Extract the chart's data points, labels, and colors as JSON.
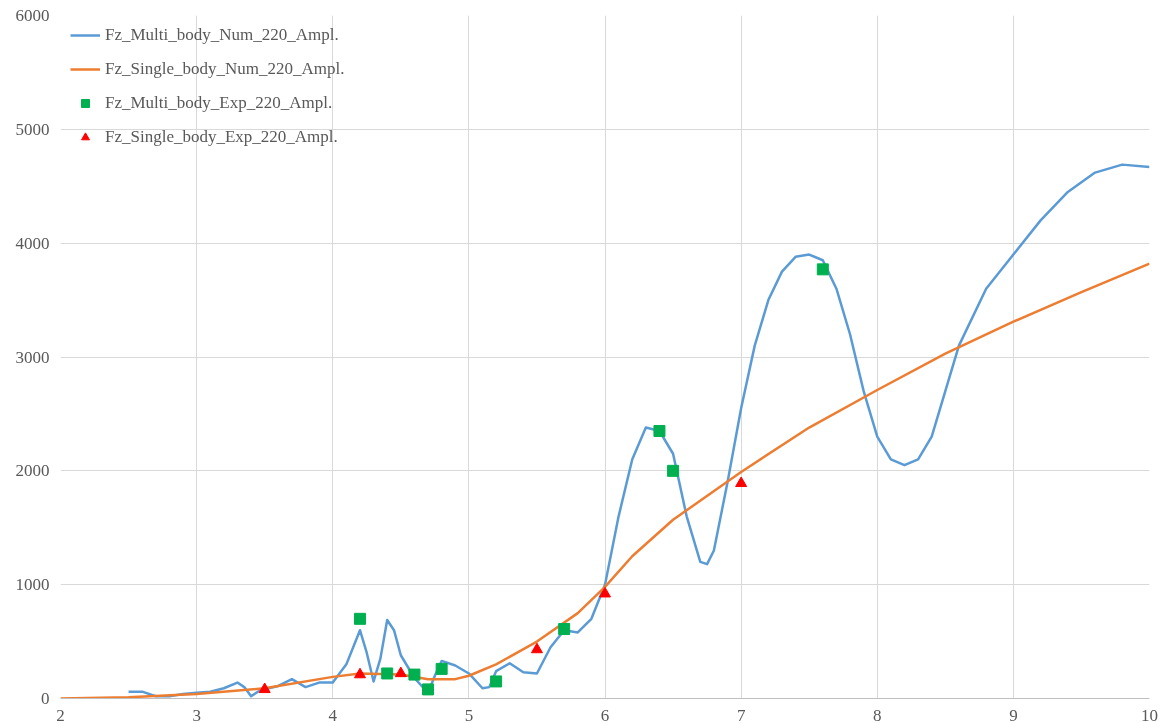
{
  "chart_data": {
    "type": "line",
    "xlim": [
      2,
      10
    ],
    "ylim": [
      0,
      6000
    ],
    "xticks": [
      2,
      3,
      4,
      5,
      6,
      7,
      8,
      9,
      10
    ],
    "yticks": [
      0,
      1000,
      2000,
      3000,
      4000,
      5000,
      6000
    ],
    "grid": true,
    "legend": "top left",
    "series": [
      {
        "name": "Fz_Multi_body_Num_220_Ampl.",
        "color": "#5b9bd5",
        "x": [
          2.5,
          2.6,
          2.7,
          2.8,
          2.9,
          3.0,
          3.1,
          3.2,
          3.3,
          3.35,
          3.4,
          3.45,
          3.5,
          3.6,
          3.7,
          3.8,
          3.9,
          4.0,
          4.1,
          4.2,
          4.25,
          4.3,
          4.35,
          4.4,
          4.45,
          4.5,
          4.6,
          4.7,
          4.75,
          4.8,
          4.9,
          5.0,
          5.1,
          5.15,
          5.2,
          5.3,
          5.4,
          5.5,
          5.6,
          5.7,
          5.8,
          5.9,
          6.0,
          6.1,
          6.2,
          6.3,
          6.4,
          6.5,
          6.6,
          6.7,
          6.75,
          6.8,
          6.9,
          7.0,
          7.1,
          7.2,
          7.3,
          7.4,
          7.5,
          7.6,
          7.7,
          7.8,
          7.9,
          8.0,
          8.1,
          8.2,
          8.3,
          8.4,
          8.5,
          8.6,
          8.8,
          9.0,
          9.2,
          9.4,
          9.6,
          9.8,
          10.0
        ],
        "values": [
          60,
          60,
          20,
          20,
          40,
          50,
          60,
          90,
          140,
          100,
          20,
          60,
          80,
          110,
          170,
          100,
          140,
          140,
          300,
          600,
          400,
          150,
          350,
          690,
          600,
          380,
          180,
          50,
          200,
          330,
          290,
          220,
          90,
          100,
          240,
          310,
          230,
          220,
          450,
          600,
          580,
          700,
          1000,
          1600,
          2100,
          2380,
          2350,
          2150,
          1600,
          1200,
          1180,
          1300,
          1900,
          2550,
          3100,
          3500,
          3750,
          3880,
          3900,
          3850,
          3600,
          3200,
          2700,
          2300,
          2100,
          2050,
          2100,
          2300,
          2700,
          3100,
          3600,
          3900,
          4200,
          4450,
          4620,
          4690,
          4670
        ]
      },
      {
        "name": "Fz_Single_body_Num_220_Ampl.",
        "color": "#ed7d31",
        "x": [
          2,
          2.5,
          3,
          3.5,
          4.0,
          4.2,
          4.5,
          4.7,
          4.9,
          5.0,
          5.2,
          5.5,
          5.8,
          6.0,
          6.2,
          6.5,
          7.0,
          7.5,
          8.0,
          8.5,
          9.0,
          9.5,
          10
        ],
        "values": [
          0,
          10,
          40,
          90,
          190,
          220,
          210,
          170,
          170,
          200,
          300,
          500,
          750,
          980,
          1250,
          1570,
          1990,
          2380,
          2710,
          3030,
          3310,
          3570,
          3820
        ]
      },
      {
        "name": "Fz_Multi_body_Exp_220_Ampl.",
        "type": "scatter",
        "color": "#00b050",
        "marker": "square",
        "x": [
          4.2,
          4.4,
          4.6,
          4.7,
          4.8,
          5.2,
          5.7,
          6.4,
          6.5,
          7.6
        ],
        "values": [
          700,
          220,
          210,
          80,
          260,
          150,
          610,
          2350,
          2000,
          3770
        ]
      },
      {
        "name": "Fz_Single_body_Exp_220_Ampl.",
        "type": "scatter",
        "color": "#ff0000",
        "marker": "triangle",
        "x": [
          3.5,
          4.2,
          4.5,
          5.5,
          6.0,
          7.0
        ],
        "values": [
          80,
          210,
          220,
          430,
          920,
          1890
        ]
      }
    ]
  }
}
